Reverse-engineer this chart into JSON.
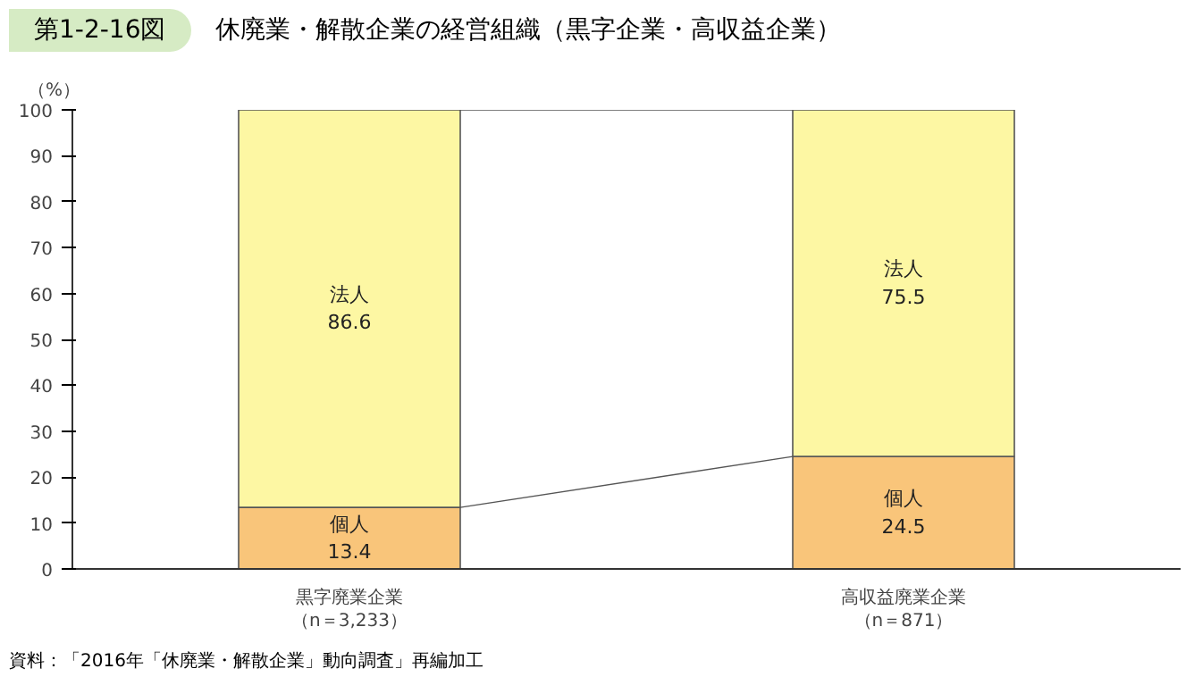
{
  "chart_data": {
    "type": "bar",
    "title": "第1-2-16図",
    "subtitle": "休廃業・解散企業の経営組織（黒字企業・高収益企業）",
    "ylabel": "（%）",
    "categories": [
      "黒字廃業企業（n＝3,233）",
      "高収益廃業企業（n＝871）"
    ],
    "stacked": true,
    "data_labels": true,
    "grid": false,
    "series": [
      {
        "name": "個人",
        "color": "#f9c57a",
        "values": [
          13.4,
          24.5
        ]
      },
      {
        "name": "法人",
        "color": "#fdf7a3",
        "values": [
          86.6,
          75.5
        ]
      }
    ],
    "ylim": [
      0,
      100
    ],
    "yticks": [
      0,
      10,
      20,
      30,
      40,
      50,
      60,
      70,
      80,
      90,
      100
    ],
    "annotations": [
      "資料：「2016年「休廃業・解散企業」動向調査」再編加工"
    ]
  }
}
